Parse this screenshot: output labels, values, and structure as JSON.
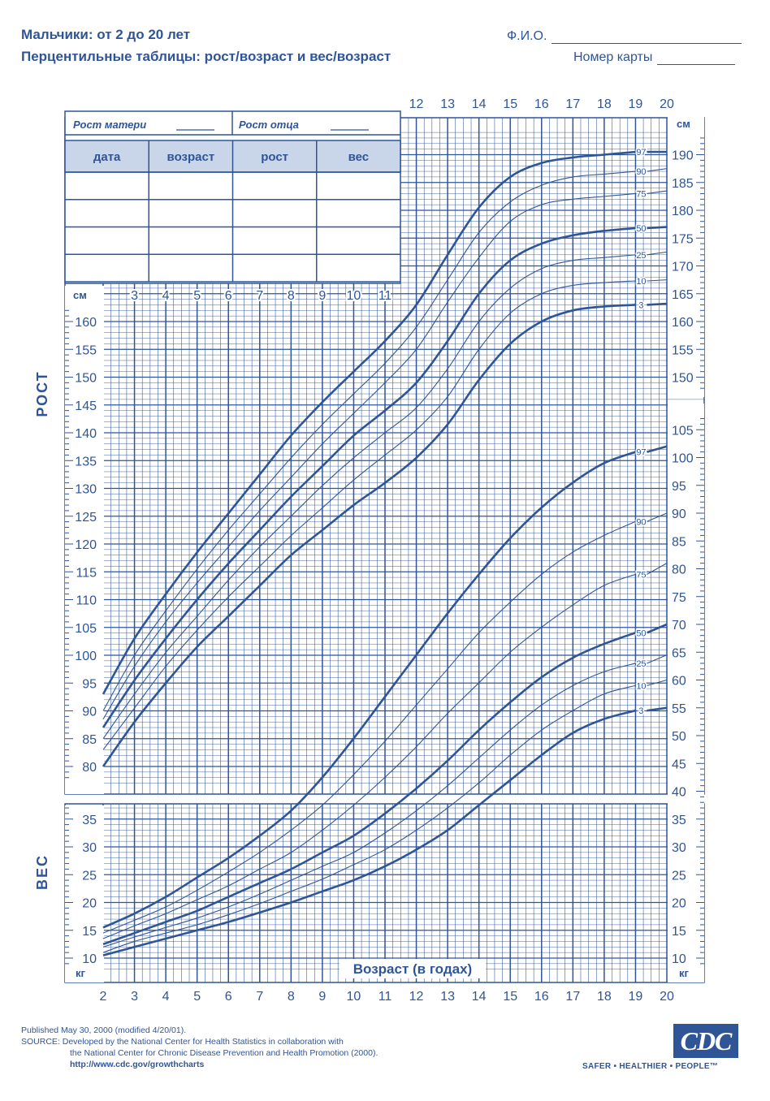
{
  "header": {
    "title_line1": "Мальчики: от 2 до 20 лет",
    "title_line2": "Перцентильные таблицы: рост/возраст и вес/возраст",
    "name_label": "Ф.И.О.",
    "card_label": "Номер карты"
  },
  "form": {
    "mother_height": "Рост матери",
    "father_height": "Рост отца",
    "columns": [
      "дата",
      "возраст",
      "рост",
      "вес"
    ],
    "rows": 4
  },
  "footer": {
    "line1": "Published May 30, 2000 (modified 4/20/01).",
    "line2": "SOURCE: Developed by the National Center for Health Statistics in collaboration with",
    "line3": "the National Center for Chronic Disease Prevention and Health Promotion (2000).",
    "line4": "http://www.cdc.gov/growthcharts",
    "logo": "CDC",
    "tagline": "SAFER • HEALTHIER • PEOPLE™"
  },
  "colors": {
    "ink": "#2f5597",
    "grid": "#2f5597"
  },
  "chart_data": {
    "type": "line",
    "xlabel": "Возраст (в годах)",
    "x_ticks": [
      2,
      3,
      4,
      5,
      6,
      7,
      8,
      9,
      10,
      11,
      12,
      13,
      14,
      15,
      16,
      17,
      18,
      19,
      20
    ],
    "xlim": [
      2,
      20
    ],
    "height": {
      "label": "РОСТ",
      "unit": "см",
      "ylim": [
        77,
        194
      ],
      "ticks_left": [
        80,
        85,
        90,
        95,
        100,
        105,
        110,
        115,
        120,
        125,
        130,
        135,
        140,
        145,
        150,
        155,
        160
      ],
      "ticks_right": [
        150,
        155,
        160,
        165,
        170,
        175,
        180,
        185,
        190
      ],
      "x": [
        2,
        3,
        4,
        5,
        6,
        7,
        8,
        9,
        10,
        11,
        12,
        13,
        14,
        15,
        16,
        17,
        18,
        19,
        20
      ],
      "series": [
        {
          "name": "97",
          "values": [
            93,
            103,
            111,
            118.5,
            125.5,
            132.5,
            139.5,
            145.5,
            151,
            156.5,
            163,
            172,
            180.5,
            186,
            188.5,
            189.5,
            190,
            190.5,
            190.5
          ]
        },
        {
          "name": "90",
          "values": [
            90,
            100,
            108,
            115.5,
            122.5,
            129,
            135.5,
            141.5,
            147,
            152.5,
            159,
            167.5,
            176,
            181.5,
            184.5,
            186,
            186.5,
            187,
            187.5
          ]
        },
        {
          "name": "75",
          "values": [
            88.5,
            98,
            106,
            113,
            119.5,
            126,
            132,
            138,
            143.5,
            149,
            155,
            163.5,
            171.5,
            178,
            181,
            182,
            182.5,
            183,
            183.5
          ]
        },
        {
          "name": "50",
          "values": [
            87,
            95.5,
            103,
            110,
            116.5,
            122.5,
            128.5,
            134,
            139.5,
            144,
            149,
            156.5,
            165,
            171,
            174,
            175.5,
            176.3,
            176.8,
            177
          ]
        },
        {
          "name": "25",
          "values": [
            85,
            93,
            100.5,
            107,
            113.5,
            119.5,
            125,
            130.5,
            135.5,
            140,
            144.5,
            151.5,
            160,
            166,
            169.5,
            171,
            171.5,
            172,
            172.5
          ]
        },
        {
          "name": "10",
          "values": [
            83,
            90.5,
            98,
            104.5,
            110.5,
            116,
            121.5,
            126.5,
            131.5,
            136,
            140.5,
            146.5,
            155,
            161.5,
            165,
            166.5,
            167,
            167.3,
            167.5
          ]
        },
        {
          "name": "3",
          "values": [
            80,
            88,
            95,
            101.5,
            107,
            112.5,
            118,
            122.5,
            127,
            131,
            135.5,
            141.5,
            149.5,
            156,
            160,
            162,
            162.7,
            163,
            163.2
          ]
        }
      ]
    },
    "weight": {
      "label": "ВЕС",
      "unit": "кг",
      "ylim": [
        8,
        106
      ],
      "ticks_left": [
        10,
        15,
        20,
        25,
        30,
        35
      ],
      "ticks_right": [
        10,
        15,
        20,
        25,
        30,
        35,
        40,
        45,
        50,
        55,
        60,
        65,
        70,
        75,
        80,
        85,
        90,
        95,
        100,
        105
      ],
      "x": [
        2,
        3,
        4,
        5,
        6,
        7,
        8,
        9,
        10,
        11,
        12,
        13,
        14,
        15,
        16,
        17,
        18,
        19,
        20
      ],
      "series": [
        {
          "name": "97",
          "values": [
            15.5,
            18,
            21,
            24.5,
            28,
            32,
            36.5,
            42.5,
            49.5,
            57,
            64.5,
            72,
            79,
            85.5,
            91,
            95.5,
            99,
            101,
            102
          ]
        },
        {
          "name": "90",
          "values": [
            14.5,
            16.8,
            19.2,
            22.2,
            25.5,
            29,
            33,
            37.5,
            43,
            49,
            55.5,
            62,
            68.5,
            74,
            79,
            83,
            86,
            88.5,
            90
          ]
        },
        {
          "name": "75",
          "values": [
            13.5,
            15.8,
            18,
            20.5,
            23,
            26,
            29,
            33,
            37.5,
            42.5,
            48,
            54,
            59.5,
            65,
            69.5,
            73.5,
            77,
            79,
            81
          ]
        },
        {
          "name": "50",
          "values": [
            12.5,
            14.5,
            16.5,
            18.5,
            21,
            23.5,
            26,
            29,
            32,
            36,
            40.5,
            45.5,
            51,
            56,
            60.5,
            64,
            66.5,
            68.5,
            70
          ]
        },
        {
          "name": "25",
          "values": [
            12,
            13.8,
            15.5,
            17.2,
            19.2,
            21.5,
            24,
            26.5,
            29,
            32.5,
            36.5,
            41,
            46,
            51,
            55.5,
            59,
            61.5,
            63,
            64.5
          ]
        },
        {
          "name": "10",
          "values": [
            11,
            13,
            14.5,
            16,
            17.8,
            19.8,
            22,
            24.2,
            26.8,
            29.5,
            33,
            37,
            41.5,
            46.5,
            51,
            54.5,
            57.5,
            59,
            60
          ]
        },
        {
          "name": "3",
          "values": [
            10.5,
            12,
            13.5,
            15,
            16.5,
            18.2,
            20,
            22,
            24,
            26.5,
            29.5,
            33,
            37.5,
            42,
            46.5,
            50.5,
            53,
            54.5,
            55
          ]
        }
      ]
    }
  }
}
